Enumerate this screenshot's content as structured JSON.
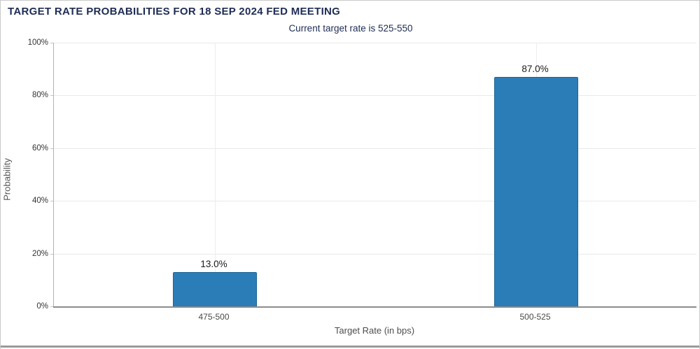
{
  "header": {
    "title": "TARGET RATE PROBABILITIES FOR 18 SEP 2024 FED MEETING",
    "subtitle": "Current target rate is 525-550"
  },
  "chart_data": {
    "type": "bar",
    "title": "TARGET RATE PROBABILITIES FOR 18 SEP 2024 FED MEETING",
    "subtitle": "Current target rate is 525-550",
    "categories": [
      "475-500",
      "500-525"
    ],
    "values": [
      13.0,
      87.0
    ],
    "value_labels": [
      "13.0%",
      "87.0%"
    ],
    "xlabel": "Target Rate (in bps)",
    "ylabel": "Probability",
    "ylim": [
      0,
      100
    ],
    "yticks": [
      0,
      20,
      40,
      60,
      80,
      100
    ],
    "ytick_labels": [
      "0%",
      "20%",
      "40%",
      "60%",
      "80%",
      "100%"
    ],
    "grid": true,
    "legend": "none",
    "bar_color": "#2b7db8"
  },
  "colors": {
    "title_navy": "#1e2c55",
    "bar_blue": "#2b7db8",
    "gridline": "#e9e9e9",
    "axis_left": "#b3b3b3",
    "axis_bottom": "#8c8c8c",
    "tick_text": "#333333",
    "category_text": "#4a4a4a"
  }
}
